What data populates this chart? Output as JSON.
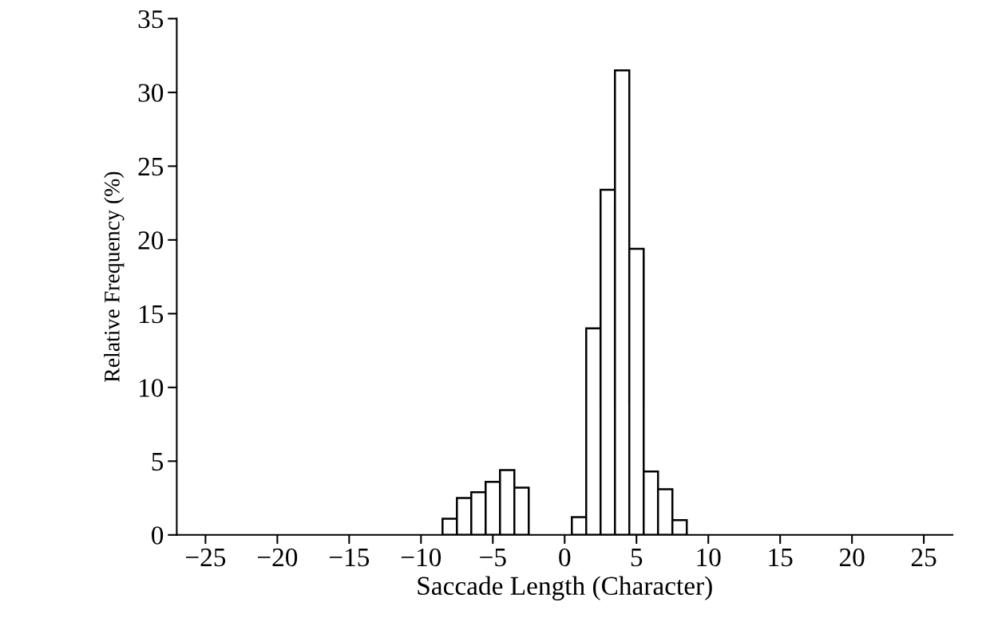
{
  "chart_data": {
    "type": "histogram",
    "xlabel": "Saccade Length (Character)",
    "ylabel": "Relative Frequency (%)",
    "bins": [
      -8.5,
      -7.5,
      -6.5,
      -5.5,
      -4.5,
      -3.5,
      -2.5,
      -1.5,
      -0.5,
      0.5,
      1.5,
      2.5,
      3.5,
      4.5,
      5.5,
      6.5,
      7.5,
      8.5
    ],
    "values": [
      1.1,
      2.5,
      2.9,
      3.6,
      4.4,
      3.2,
      0,
      0,
      0,
      1.2,
      14.0,
      23.4,
      31.5,
      19.4,
      4.3,
      3.1,
      1.0
    ],
    "color": "#ffffff",
    "xlim": [
      -27,
      27
    ],
    "xticks": [
      -25,
      -20,
      -15,
      -10,
      -5,
      0,
      5,
      10,
      15,
      20,
      25
    ],
    "ylim": [
      0,
      35
    ],
    "yticks": [
      0,
      5,
      10,
      15,
      20,
      25,
      30,
      35
    ],
    "grid": false
  }
}
